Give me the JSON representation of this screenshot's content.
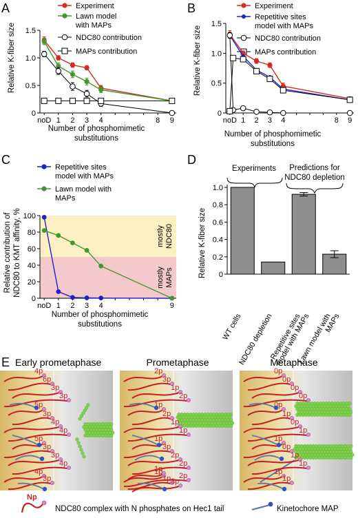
{
  "colors": {
    "experiment": "#d42a20",
    "lawn": "#3f9a2b",
    "repetitive": "#2020c8",
    "zone_ndc80": "#fbefc4",
    "zone_maps": "#f4c9cc",
    "bar": "#8f8f8f",
    "hec1": "#c21f28",
    "phosphate": "#d889c2",
    "map_line": "#5b7aa6",
    "map_head": "#2f52c4",
    "microtubule": "#7fd14a"
  },
  "panels": {
    "A": {
      "letter": "A",
      "ylabel": "Relative K-fiber size",
      "xlabel": [
        "Number of phosphomimetic",
        "substitutions"
      ],
      "legend": [
        "Experiment",
        "Lawn model",
        "with MAPs",
        "NDC80 contribution",
        "MAPs contribution"
      ]
    },
    "B": {
      "letter": "B",
      "ylabel": "Relative K-fiber size",
      "xlabel": [
        "Number of phosphomimetic",
        "substitutions"
      ],
      "legend": [
        "Experiment",
        "Repetitive sites",
        "model with MAPs",
        "NDC80 contribution",
        "MAPs contribution"
      ]
    },
    "C": {
      "letter": "C",
      "ylabel": [
        "Relative contribution of",
        "NDC80 to KMT affinity, %"
      ],
      "xlabel": [
        "Number of phosphomimetic",
        "substitutions"
      ],
      "legend": [
        "Repetitive sites",
        "model with MAPs",
        "Lawn model with",
        "MAPs"
      ],
      "zones": {
        "ndc80": [
          "mostly",
          "NDC80"
        ],
        "maps": [
          "mostly",
          "MAPs"
        ]
      }
    },
    "D": {
      "letter": "D",
      "ylabel": "Relative K-fiber size",
      "brace_labels": [
        "Experiments",
        "Predictions for",
        "NDC80 depletion"
      ],
      "categories": [
        "WT  cells",
        "NDC80 depletion",
        "Repetitive sites",
        "model with MAPs",
        "Lawn model with",
        "MAPs"
      ]
    },
    "E": {
      "letter": "E",
      "titles": [
        "Early prometaphase",
        "Prometaphase",
        "Metaphase"
      ],
      "labels": {
        "early": [
          "4p",
          "6p",
          "3p",
          "3p",
          "5p",
          "3p",
          "4p",
          "4p",
          "5p",
          "3p",
          "3p",
          "4p",
          "4p",
          "3p"
        ],
        "prom": [
          "2p",
          "3p",
          "1p",
          "2p",
          "1p",
          "2p",
          "1p",
          "1p",
          "1p",
          "3p",
          "2p",
          "2p",
          "1p",
          "1p",
          "3p",
          "2p",
          "1p"
        ],
        "meta": [
          "0p",
          "0p",
          "0p",
          "0p",
          "0p",
          "1p",
          "0p",
          "1p",
          "1p",
          "0p",
          "1p",
          "1p",
          "1p",
          "1p"
        ]
      },
      "legend": {
        "np": "Np",
        "ndc80": "NDC80 complex with N phosphates on Hec1 tail",
        "map": "Kinetochore MAP"
      }
    }
  },
  "chart_data": [
    {
      "panel": "A",
      "type": "line",
      "x_ticks": [
        "noD",
        "1",
        "2",
        "3",
        "4",
        "",
        "",
        "",
        "8",
        "9"
      ],
      "x_tick_values": [
        0,
        1,
        2,
        3,
        4,
        8,
        9
      ],
      "ylim": [
        0,
        1.5
      ],
      "y_ticks": [
        0,
        0.5,
        1.0,
        1.5
      ],
      "y_tick_labels": [
        "0",
        "0.5",
        "1.0",
        "1.5"
      ],
      "series": [
        {
          "name": "Experiment",
          "x": [
            0,
            1,
            2,
            3,
            4,
            9
          ],
          "y": [
            1.32,
            1.0,
            0.87,
            0.82,
            0.45,
            0.22
          ],
          "err": [
            0.06,
            0.04,
            0.04,
            0.04,
            0.05,
            0.02
          ]
        },
        {
          "name": "Lawn model with MAPs",
          "x": [
            0,
            1,
            2,
            3,
            4,
            9
          ],
          "y": [
            1.3,
            0.85,
            0.7,
            0.57,
            0.42,
            0.22
          ],
          "err": [
            0.06,
            0.06,
            0.06,
            0.06,
            0.05,
            0.02
          ]
        },
        {
          "name": "NDC80 contribution",
          "x": [
            0,
            1,
            2,
            3,
            4,
            9
          ],
          "y": [
            1.07,
            0.76,
            0.48,
            0.35,
            0.17,
            0.0
          ],
          "err": [
            0.05,
            0.06,
            0.07,
            0.06,
            0.05,
            0.0
          ]
        },
        {
          "name": "MAPs contribution",
          "x": [
            0,
            1,
            2,
            3,
            4,
            9
          ],
          "y": [
            0.22,
            0.22,
            0.22,
            0.22,
            0.22,
            0.22
          ],
          "err": [
            0,
            0,
            0,
            0,
            0,
            0
          ]
        }
      ]
    },
    {
      "panel": "B",
      "type": "line",
      "x_ticks": [
        "noD",
        "1",
        "2",
        "3",
        "4",
        "",
        "",
        "",
        "8",
        "9"
      ],
      "x_tick_values": [
        0,
        1,
        2,
        3,
        4,
        8,
        9
      ],
      "ylim": [
        0,
        1.5
      ],
      "y_ticks": [
        0,
        0.5,
        1.0,
        1.5
      ],
      "y_tick_labels": [
        "0",
        "0.5",
        "1.0",
        "1.5"
      ],
      "series": [
        {
          "name": "Experiment",
          "x": [
            0,
            1,
            2,
            3,
            4,
            9
          ],
          "y": [
            1.32,
            1.0,
            0.87,
            0.8,
            0.45,
            0.24
          ],
          "err": [
            0.06,
            0.04,
            0.04,
            0.04,
            0.05,
            0.03
          ]
        },
        {
          "name": "Repetitive sites model with MAPs",
          "x": [
            0,
            1,
            2,
            3,
            4,
            9
          ],
          "y": [
            1.3,
            0.95,
            0.72,
            0.6,
            0.4,
            0.22
          ],
          "err": [
            0,
            0,
            0,
            0,
            0,
            0
          ]
        },
        {
          "name": "NDC80 contribution",
          "x": [
            0,
            0.25,
            1,
            2,
            3,
            4,
            9
          ],
          "y": [
            1.3,
            0.05,
            0.08,
            0.02,
            0.01,
            0.0,
            0.0
          ],
          "err": [
            0.05,
            0,
            0.03,
            0,
            0,
            0,
            0
          ]
        },
        {
          "name": "MAPs contribution",
          "x": [
            0,
            0.25,
            1,
            2,
            3,
            4,
            9
          ],
          "y": [
            0.03,
            0.92,
            0.9,
            0.7,
            0.57,
            0.38,
            0.22
          ],
          "err": [
            0,
            0.03,
            0,
            0,
            0,
            0,
            0
          ]
        }
      ]
    },
    {
      "panel": "C",
      "type": "line",
      "x_ticks": [
        "noD",
        "1",
        "2",
        "3",
        "4",
        "",
        "",
        "",
        "",
        "9"
      ],
      "x_tick_values": [
        0,
        1,
        2,
        3,
        4,
        9
      ],
      "ylim": [
        0,
        100
      ],
      "y_ticks": [
        0,
        20,
        40,
        60,
        80,
        100
      ],
      "y_tick_labels": [
        "0",
        "20",
        "40",
        "60",
        "80",
        "100"
      ],
      "series": [
        {
          "name": "Repetitive sites model with MAPs",
          "x": [
            0,
            1,
            2,
            3,
            4,
            9
          ],
          "y": [
            98,
            8,
            1,
            0.5,
            0.3,
            0
          ]
        },
        {
          "name": "Lawn model with MAPs",
          "x": [
            0,
            1,
            2,
            3,
            4,
            9
          ],
          "y": [
            82,
            76,
            67,
            58,
            39,
            0
          ]
        }
      ]
    },
    {
      "panel": "D",
      "type": "bar",
      "categories": [
        "WT  cells",
        "NDC80 depletion",
        "Repetitive sites model with MAPs",
        "Lawn model with MAPs"
      ],
      "values": [
        1.0,
        0.14,
        0.92,
        0.23
      ],
      "err": [
        0,
        0,
        0.02,
        0.04
      ],
      "ylim": [
        0,
        1.0
      ],
      "y_ticks": [
        0,
        0.2,
        0.4,
        0.6,
        0.8,
        1.0
      ],
      "y_tick_labels": [
        "0",
        "0.2",
        "0.4",
        "0.6",
        "0.8",
        "1.0"
      ]
    }
  ]
}
